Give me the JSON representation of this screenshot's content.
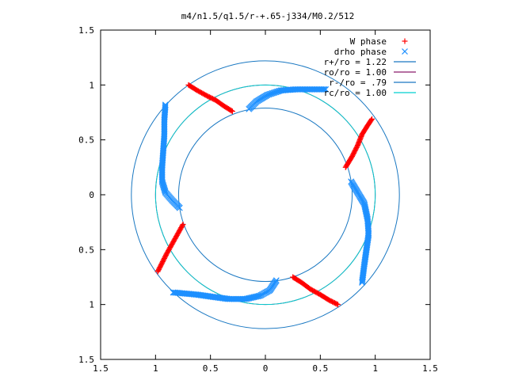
{
  "chart_data": {
    "type": "scatter",
    "title": "m4/n1.5/q1.5/r-+.65-j334/M0.2/512",
    "xlim": [
      -1.5,
      1.5
    ],
    "ylim": [
      -1.5,
      1.5
    ],
    "x_ticks": [
      -1.5,
      -1,
      -0.5,
      0,
      0.5,
      1,
      1.5
    ],
    "x_tick_labels": [
      "1.5",
      "1",
      "0.5",
      "0",
      "0.5",
      "1",
      "1.5"
    ],
    "y_ticks": [
      1.5,
      1,
      0.5,
      0,
      -0.5,
      -1,
      -1.5
    ],
    "y_tick_labels": [
      "1.5",
      "1",
      "0.5",
      "0",
      "0.5",
      "1",
      "1.5"
    ],
    "grid": false,
    "legend_position": "top-right",
    "colors": {
      "w_phase": "#ff0000",
      "drho_phase": "#1e90ff",
      "r_plus": "#1a78c2",
      "r_o": "#8b1a6a",
      "r_minus": "#1a78c2",
      "r_c": "#00d0d0"
    },
    "series": [
      {
        "name": "W phase",
        "marker": "+",
        "segments": [
          [
            [
              -0.7,
              1.0
            ],
            [
              -0.62,
              0.95
            ],
            [
              -0.53,
              0.9
            ],
            [
              -0.45,
              0.86
            ],
            [
              -0.38,
              0.81
            ],
            [
              -0.3,
              0.76
            ]
          ],
          [
            [
              0.73,
              0.25
            ],
            [
              0.79,
              0.35
            ],
            [
              0.84,
              0.45
            ],
            [
              0.88,
              0.55
            ],
            [
              0.93,
              0.63
            ],
            [
              0.97,
              0.69
            ]
          ],
          [
            [
              -0.75,
              -0.27
            ],
            [
              -0.8,
              -0.36
            ],
            [
              -0.85,
              -0.45
            ],
            [
              -0.9,
              -0.54
            ],
            [
              -0.94,
              -0.62
            ],
            [
              -0.98,
              -0.7
            ]
          ],
          [
            [
              0.25,
              -0.75
            ],
            [
              0.33,
              -0.8
            ],
            [
              0.41,
              -0.86
            ],
            [
              0.5,
              -0.91
            ],
            [
              0.58,
              -0.96
            ],
            [
              0.66,
              -1.0
            ]
          ]
        ]
      },
      {
        "name": "drho phase",
        "marker": "x",
        "segments": [
          [
            [
              -0.91,
              0.82
            ],
            [
              -0.92,
              0.68
            ],
            [
              -0.92,
              0.54
            ],
            [
              -0.93,
              0.4
            ],
            [
              -0.94,
              0.25
            ],
            [
              -0.94,
              0.12
            ],
            [
              -0.91,
              0.02
            ],
            [
              -0.85,
              -0.05
            ],
            [
              -0.78,
              -0.12
            ]
          ],
          [
            [
              -0.15,
              0.78
            ],
            [
              -0.08,
              0.85
            ],
            [
              0.02,
              0.91
            ],
            [
              0.14,
              0.95
            ],
            [
              0.28,
              0.96
            ],
            [
              0.42,
              0.96
            ],
            [
              0.55,
              0.96
            ]
          ],
          [
            [
              0.78,
              0.12
            ],
            [
              0.84,
              0.02
            ],
            [
              0.9,
              -0.08
            ],
            [
              0.93,
              -0.22
            ],
            [
              0.94,
              -0.36
            ],
            [
              0.92,
              -0.5
            ],
            [
              0.9,
              -0.64
            ],
            [
              0.88,
              -0.8
            ]
          ],
          [
            [
              0.1,
              -0.78
            ],
            [
              0.04,
              -0.87
            ],
            [
              -0.05,
              -0.92
            ],
            [
              -0.18,
              -0.95
            ],
            [
              -0.33,
              -0.95
            ],
            [
              -0.48,
              -0.93
            ],
            [
              -0.62,
              -0.91
            ],
            [
              -0.84,
              -0.89
            ]
          ]
        ]
      }
    ],
    "circles": [
      {
        "name": "r+/ro = 1.22",
        "radius": 1.22,
        "color_key": "r_plus"
      },
      {
        "name": "ro/ro = 1.00",
        "radius": 1.0,
        "color_key": "r_o"
      },
      {
        "name": "r-/ro = .79",
        "radius": 0.79,
        "color_key": "r_minus"
      },
      {
        "name": "rc/ro = 1.00",
        "radius": 1.0,
        "color_key": "r_c"
      }
    ]
  }
}
